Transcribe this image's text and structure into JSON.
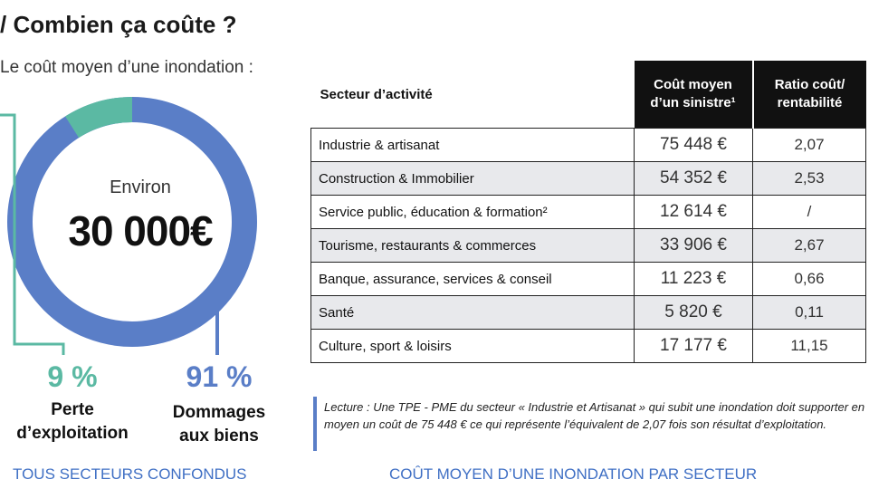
{
  "header": {
    "title": "/ Combien ça coûte ?",
    "subtitle": "Le coût moyen d’une inondation :"
  },
  "donut": {
    "center_label": "Environ",
    "total": "30 000€",
    "segments": [
      {
        "percent": "9 %",
        "value": 9,
        "label_line1": "Perte",
        "label_line2": "d’exploitation",
        "color": "#5bb9a3"
      },
      {
        "percent": "91 %",
        "value": 91,
        "label_line1": "Dommages",
        "label_line2": "aux biens",
        "color": "#5a7ec7"
      }
    ],
    "caption": "TOUS SECTEURS CONFONDUS"
  },
  "table": {
    "headers": {
      "sector": "Secteur d’activité",
      "cost_line1": "Coût moyen",
      "cost_line2": "d’un sinistre¹",
      "ratio_line1": "Ratio coût/",
      "ratio_line2": "rentabilité"
    },
    "rows": [
      {
        "sector": "Industrie & artisanat",
        "cost": "75 448 €",
        "ratio": "2,07"
      },
      {
        "sector": "Construction & Immobilier",
        "cost": "54 352 €",
        "ratio": "2,53"
      },
      {
        "sector": "Service public, éducation & formation²",
        "cost": "12 614 €",
        "ratio": "/"
      },
      {
        "sector": "Tourisme, restaurants & commerces",
        "cost": "33 906 €",
        "ratio": "2,67"
      },
      {
        "sector": "Banque, assurance, services & conseil",
        "cost": "11 223 €",
        "ratio": "0,66"
      },
      {
        "sector": "Santé",
        "cost": "5 820 €",
        "ratio": "0,11"
      },
      {
        "sector": "Culture, sport & loisirs",
        "cost": "17 177 €",
        "ratio": "11,15"
      }
    ],
    "note": "Lecture : Une TPE - PME du secteur « Industrie et Artisanat » qui subit une inondation doit supporter en moyen un coût de 75 448 € ce qui représente l’équivalent de 2,07 fois son résultat d’exploitation.",
    "caption": "COÛT MOYEN D’UNE INONDATION PAR SECTEUR"
  }
}
